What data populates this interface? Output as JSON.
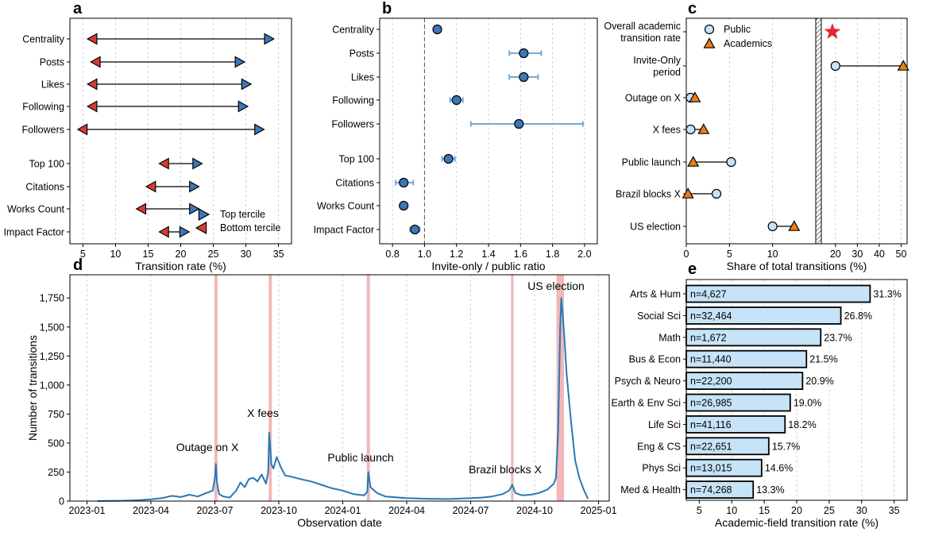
{
  "colors": {
    "blue": "#3a78b5",
    "red": "#d63c35",
    "line": "#2878b5",
    "light_blue": "#c6e3f7",
    "orange": "#f07d16",
    "err": "#74a9d8",
    "shade": "#f2b7b7",
    "star": "#e1282d"
  },
  "panels": {
    "a": "a",
    "b": "b",
    "c": "c",
    "d": "d",
    "e": "e"
  },
  "chart_data": [
    {
      "id": "a",
      "type": "dumbbell",
      "xlabel": "Transition rate (%)",
      "xlim": [
        3,
        37
      ],
      "xticks": [
        5,
        10,
        15,
        20,
        25,
        30,
        35
      ],
      "categories": [
        "Centrality",
        "Posts",
        "Likes",
        "Following",
        "Followers",
        "Top 100",
        "Citations",
        "Works Count",
        "Impact Factor"
      ],
      "bottom_tercile": [
        6.5,
        7.0,
        6.5,
        6.5,
        5.0,
        17.5,
        15.5,
        14.0,
        17.5
      ],
      "top_tercile": [
        33.5,
        29.0,
        30.0,
        29.5,
        32.0,
        22.5,
        22.0,
        22.0,
        20.5
      ],
      "legend": [
        "Top tercile",
        "Bottom tercile"
      ]
    },
    {
      "id": "b",
      "type": "errorbar",
      "xlabel": "Invite-only / public ratio",
      "xlim": [
        0.72,
        2.08
      ],
      "xticks": [
        0.8,
        1.0,
        1.2,
        1.4,
        1.6,
        1.8,
        2.0
      ],
      "reference_line": 1.0,
      "categories": [
        "Centrality",
        "Posts",
        "Likes",
        "Following",
        "Followers",
        "Top 100",
        "Citations",
        "Works Count",
        "Impact Factor"
      ],
      "values": [
        1.08,
        1.62,
        1.62,
        1.2,
        1.59,
        1.15,
        0.87,
        0.87,
        0.94
      ],
      "lower": [
        1.08,
        1.53,
        1.53,
        1.16,
        1.29,
        1.11,
        0.82,
        0.85,
        0.91
      ],
      "upper": [
        1.08,
        1.73,
        1.71,
        1.24,
        1.99,
        1.19,
        0.93,
        0.89,
        0.97
      ]
    },
    {
      "id": "c",
      "type": "dumbbell",
      "xlabel": "Share of total transitions (%)",
      "xticks_left": [
        0,
        5,
        10
      ],
      "xticks_right": [
        20,
        30,
        40,
        50
      ],
      "categories": [
        "Overall academic transition rate",
        "Invite-Only period",
        "Outage on X",
        "X fees",
        "Public launch",
        "Brazil blocks X",
        "US election"
      ],
      "category_lines": [
        [
          "Overall academic",
          "transition rate"
        ],
        [
          "Invite-Only",
          "period"
        ],
        [
          "Outage on X"
        ],
        [
          "X fees"
        ],
        [
          "Public launch"
        ],
        [
          "Brazil blocks X"
        ],
        [
          "US election"
        ]
      ],
      "public": [
        null,
        20,
        0.5,
        0.5,
        5.2,
        3.5,
        10.0
      ],
      "academics": [
        null,
        51,
        1.0,
        2.0,
        0.8,
        0.2,
        12.5
      ],
      "overall_rate_star": 18.6,
      "legend": [
        "Public",
        "Academics"
      ]
    },
    {
      "id": "d",
      "type": "line",
      "xlabel": "Observation date",
      "ylabel": "Number of transitions",
      "ylim": [
        0,
        1950
      ],
      "yticks": [
        0,
        250,
        500,
        750,
        1000,
        1250,
        1500,
        1750
      ],
      "ytick_labels": [
        "0",
        "250",
        "500",
        "750",
        "1,000",
        "1,250",
        "1,500",
        "1,750"
      ],
      "xtick_labels": [
        "2023-01",
        "2023-04",
        "2023-07",
        "2023-10",
        "2024-01",
        "2024-04",
        "2024-07",
        "2024-10",
        "2025-01"
      ],
      "x_domain_months": [
        -0.8,
        24.5
      ],
      "events": [
        {
          "label": "Outage on X",
          "month": 6.05,
          "width": 0.15
        },
        {
          "label": "X fees",
          "month": 8.6,
          "width": 0.15
        },
        {
          "label": "Public launch",
          "month": 13.2,
          "width": 0.15
        },
        {
          "label": "Brazil blocks X",
          "month": 19.95,
          "width": 0.12
        },
        {
          "label": "US election",
          "month": 22.2,
          "width": 0.35
        }
      ],
      "series_month": [
        0.5,
        1.0,
        1.5,
        2.0,
        2.5,
        3.0,
        3.5,
        4.0,
        4.4,
        4.8,
        5.2,
        5.6,
        5.9,
        6.0,
        6.05,
        6.1,
        6.2,
        6.4,
        6.7,
        7.0,
        7.2,
        7.4,
        7.6,
        7.8,
        8.0,
        8.2,
        8.4,
        8.5,
        8.55,
        8.6,
        8.65,
        8.75,
        8.9,
        9.1,
        9.3,
        9.6,
        10.0,
        10.5,
        11.0,
        11.5,
        12.0,
        12.5,
        13.0,
        13.15,
        13.2,
        13.3,
        13.6,
        14.0,
        15.0,
        16.0,
        17.0,
        18.0,
        18.5,
        19.0,
        19.5,
        19.8,
        19.95,
        20.1,
        20.4,
        20.8,
        21.2,
        21.6,
        21.9,
        22.0,
        22.1,
        22.2,
        22.25,
        22.3,
        22.4,
        22.5,
        22.7,
        22.9,
        23.1,
        23.3,
        23.5
      ],
      "series_values": [
        0,
        2,
        3,
        5,
        8,
        15,
        25,
        45,
        35,
        55,
        40,
        70,
        90,
        200,
        320,
        160,
        60,
        40,
        30,
        90,
        160,
        120,
        190,
        200,
        170,
        230,
        150,
        250,
        590,
        450,
        320,
        280,
        380,
        290,
        220,
        210,
        190,
        170,
        140,
        110,
        90,
        60,
        50,
        80,
        250,
        120,
        70,
        40,
        25,
        20,
        18,
        25,
        30,
        40,
        60,
        90,
        140,
        70,
        50,
        55,
        70,
        100,
        150,
        200,
        600,
        1500,
        1750,
        1650,
        1400,
        1100,
        700,
        350,
        200,
        100,
        20
      ]
    },
    {
      "id": "e",
      "type": "barh",
      "xlabel": "Academic-field transition rate (%)",
      "xlim": [
        3,
        37
      ],
      "xticks": [
        5,
        10,
        15,
        20,
        25,
        30,
        35
      ],
      "categories": [
        "Arts & Hum",
        "Social Sci",
        "Math",
        "Bus & Econ",
        "Psych & Neuro",
        "Earth & Env Sci",
        "Life Sci",
        "Eng & CS",
        "Phys Sci",
        "Med & Health"
      ],
      "values": [
        31.3,
        26.8,
        23.7,
        21.5,
        20.9,
        19.0,
        18.2,
        15.7,
        14.6,
        13.3
      ],
      "value_labels": [
        "31.3%",
        "26.8%",
        "23.7%",
        "21.5%",
        "20.9%",
        "19.0%",
        "18.2%",
        "15.7%",
        "14.6%",
        "13.3%"
      ],
      "n_labels": [
        "n=4,627",
        "n=32,464",
        "n=1,672",
        "n=11,440",
        "n=22,200",
        "n=26,985",
        "n=41,116",
        "n=22,651",
        "n=13,015",
        "n=74,268"
      ]
    }
  ]
}
